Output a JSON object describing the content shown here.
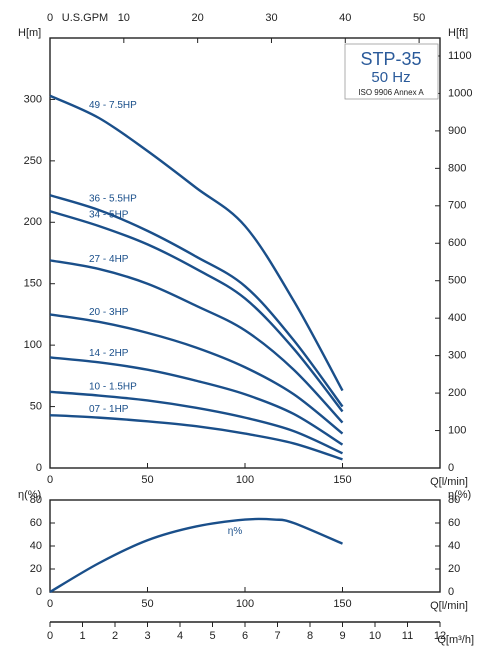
{
  "chart_data": [
    {
      "type": "line",
      "xlabel": "Q[l/min]",
      "ylabel": "H[m]",
      "y2label": "H[ft]",
      "x2label": "U.S.GPM",
      "title": "STP-35",
      "subtitle": "50 Hz",
      "note": "ISO 9906 Annex A",
      "x": [
        0,
        25,
        50,
        75,
        100,
        125,
        150
      ],
      "xlim": [
        0,
        200
      ],
      "xticks": [
        0,
        50,
        100,
        150
      ],
      "ylim": [
        0,
        350
      ],
      "yticks": [
        0,
        50,
        100,
        150,
        200,
        250,
        300
      ],
      "y2lim": [
        0,
        1148
      ],
      "y2ticks": [
        0,
        100,
        200,
        300,
        400,
        500,
        600,
        700,
        800,
        900,
        1000,
        1100
      ],
      "x2lim": [
        0,
        52.83
      ],
      "x2ticks": [
        0,
        10,
        20,
        30,
        40,
        50
      ],
      "grid": false,
      "series": [
        {
          "name": "49 - 7.5HP",
          "color": "#1a4f8a",
          "values": [
            303,
            285,
            258,
            228,
            197,
            136,
            63
          ]
        },
        {
          "name": "36 - 5.5HP",
          "color": "#1a4f8a",
          "values": [
            222,
            210,
            193,
            172,
            148,
            104,
            50
          ]
        },
        {
          "name": "34 - 5HP",
          "color": "#1a4f8a",
          "values": [
            209,
            197,
            182,
            162,
            138,
            97,
            46
          ]
        },
        {
          "name": "27 - 4HP",
          "color": "#1a4f8a",
          "values": [
            169,
            162,
            150,
            132,
            112,
            80,
            37
          ]
        },
        {
          "name": "20 - 3HP",
          "color": "#1a4f8a",
          "values": [
            125,
            119,
            110,
            98,
            82,
            60,
            28
          ]
        },
        {
          "name": "14 - 2HP",
          "color": "#1a4f8a",
          "values": [
            90,
            86,
            80,
            71,
            60,
            44,
            19
          ]
        },
        {
          "name": "10 - 1.5HP",
          "color": "#1a4f8a",
          "values": [
            62,
            59,
            55,
            49,
            41,
            30,
            12
          ]
        },
        {
          "name": "07 - 1HP",
          "color": "#1a4f8a",
          "values": [
            43,
            41,
            38,
            34,
            28,
            20,
            7
          ]
        }
      ]
    },
    {
      "type": "line",
      "xlabel": "Q[l/min]",
      "ylabel": "η(%)",
      "y2label": "η(%)",
      "x2label": "Q[m³/h]",
      "x": [
        0,
        25,
        50,
        75,
        100,
        115,
        125,
        150
      ],
      "xlim": [
        0,
        200
      ],
      "xticks": [
        0,
        50,
        100,
        150
      ],
      "ylim": [
        0,
        80
      ],
      "yticks": [
        0,
        20,
        40,
        60,
        80
      ],
      "y2lim": [
        0,
        80
      ],
      "y2ticks": [
        0,
        20,
        40,
        60,
        80
      ],
      "x2lim": [
        0,
        12
      ],
      "x2ticks": [
        0,
        1,
        2,
        3,
        4,
        5,
        6,
        7,
        8,
        9,
        10,
        11,
        12
      ],
      "grid": false,
      "series": [
        {
          "name": "η%",
          "color": "#1a4f8a",
          "values": [
            0,
            25,
            45,
            57,
            63,
            63,
            60,
            42
          ]
        }
      ]
    }
  ]
}
